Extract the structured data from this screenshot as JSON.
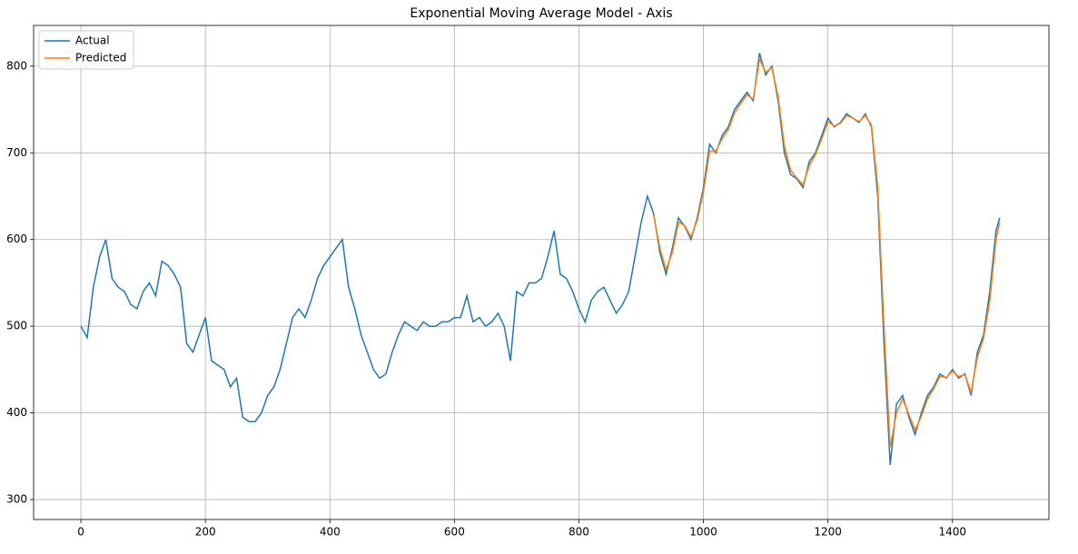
{
  "chart_data": {
    "type": "line",
    "title": "Exponential Moving Average Model - Axis",
    "xlim": [
      -76,
      1555
    ],
    "ylim": [
      277,
      847
    ],
    "xticks": [
      0,
      200,
      400,
      600,
      800,
      1000,
      1200,
      1400
    ],
    "yticks": [
      300,
      400,
      500,
      600,
      700,
      800
    ],
    "grid": true,
    "legend": "upper left",
    "series": [
      {
        "name": "Actual",
        "color": "#1f77b4",
        "x": [
          0,
          10,
          20,
          30,
          40,
          50,
          60,
          70,
          80,
          90,
          100,
          110,
          120,
          130,
          140,
          150,
          160,
          170,
          180,
          190,
          200,
          210,
          220,
          230,
          240,
          250,
          260,
          270,
          280,
          290,
          300,
          310,
          320,
          330,
          340,
          350,
          360,
          370,
          380,
          390,
          400,
          410,
          420,
          430,
          440,
          450,
          460,
          470,
          480,
          490,
          500,
          510,
          520,
          530,
          540,
          550,
          560,
          570,
          580,
          590,
          600,
          610,
          620,
          630,
          640,
          650,
          660,
          670,
          680,
          690,
          700,
          710,
          720,
          730,
          740,
          750,
          760,
          770,
          780,
          790,
          800,
          810,
          820,
          830,
          840,
          850,
          860,
          870,
          880,
          890,
          900,
          910,
          920,
          930,
          940,
          950,
          960,
          970,
          980,
          990,
          1000,
          1010,
          1020,
          1030,
          1040,
          1050,
          1060,
          1070,
          1080,
          1090,
          1100,
          1110,
          1120,
          1130,
          1140,
          1150,
          1160,
          1170,
          1180,
          1190,
          1200,
          1210,
          1220,
          1230,
          1240,
          1250,
          1260,
          1270,
          1280,
          1290,
          1300,
          1310,
          1320,
          1330,
          1340,
          1350,
          1360,
          1370,
          1380,
          1390,
          1400,
          1410,
          1420,
          1430,
          1440,
          1450,
          1460,
          1470,
          1476
        ],
        "values": [
          500,
          487,
          545,
          580,
          600,
          555,
          545,
          540,
          525,
          520,
          540,
          550,
          535,
          575,
          570,
          560,
          545,
          480,
          470,
          490,
          510,
          460,
          455,
          450,
          430,
          440,
          395,
          390,
          390,
          400,
          420,
          430,
          450,
          480,
          510,
          520,
          510,
          530,
          555,
          570,
          580,
          590,
          600,
          545,
          520,
          490,
          470,
          450,
          440,
          445,
          470,
          490,
          505,
          500,
          495,
          505,
          500,
          500,
          505,
          505,
          510,
          510,
          535,
          505,
          510,
          500,
          505,
          515,
          500,
          460,
          540,
          535,
          550,
          550,
          555,
          580,
          610,
          560,
          555,
          540,
          520,
          505,
          530,
          540,
          545,
          530,
          515,
          525,
          540,
          580,
          620,
          650,
          630,
          585,
          560,
          590,
          625,
          615,
          600,
          625,
          660,
          710,
          700,
          720,
          730,
          750,
          760,
          770,
          760,
          815,
          790,
          800,
          760,
          700,
          675,
          670,
          660,
          690,
          700,
          720,
          740,
          730,
          735,
          745,
          740,
          735,
          745,
          730,
          650,
          480,
          340,
          410,
          420,
          395,
          375,
          400,
          420,
          430,
          445,
          440,
          450,
          440,
          445,
          420,
          470,
          490,
          540,
          610,
          625
        ]
      },
      {
        "name": "Predicted",
        "color": "#ff7f0e",
        "x": [
          920,
          930,
          940,
          950,
          960,
          970,
          980,
          990,
          1000,
          1010,
          1020,
          1030,
          1040,
          1050,
          1060,
          1070,
          1080,
          1090,
          1100,
          1110,
          1120,
          1130,
          1140,
          1150,
          1160,
          1170,
          1180,
          1190,
          1200,
          1210,
          1220,
          1230,
          1240,
          1250,
          1260,
          1270,
          1280,
          1290,
          1300,
          1310,
          1320,
          1330,
          1340,
          1350,
          1360,
          1370,
          1380,
          1390,
          1400,
          1410,
          1420,
          1430,
          1440,
          1450,
          1460,
          1470,
          1476
        ],
        "values": [
          628,
          590,
          565,
          585,
          620,
          616,
          603,
          622,
          655,
          702,
          702,
          716,
          727,
          746,
          757,
          767,
          762,
          808,
          793,
          798,
          765,
          708,
          680,
          671,
          663,
          685,
          698,
          716,
          736,
          731,
          734,
          743,
          740,
          736,
          743,
          732,
          660,
          500,
          360,
          400,
          416,
          398,
          380,
          396,
          416,
          428,
          442,
          441,
          448,
          442,
          444,
          424,
          464,
          486,
          530,
          600,
          620
        ]
      }
    ]
  }
}
